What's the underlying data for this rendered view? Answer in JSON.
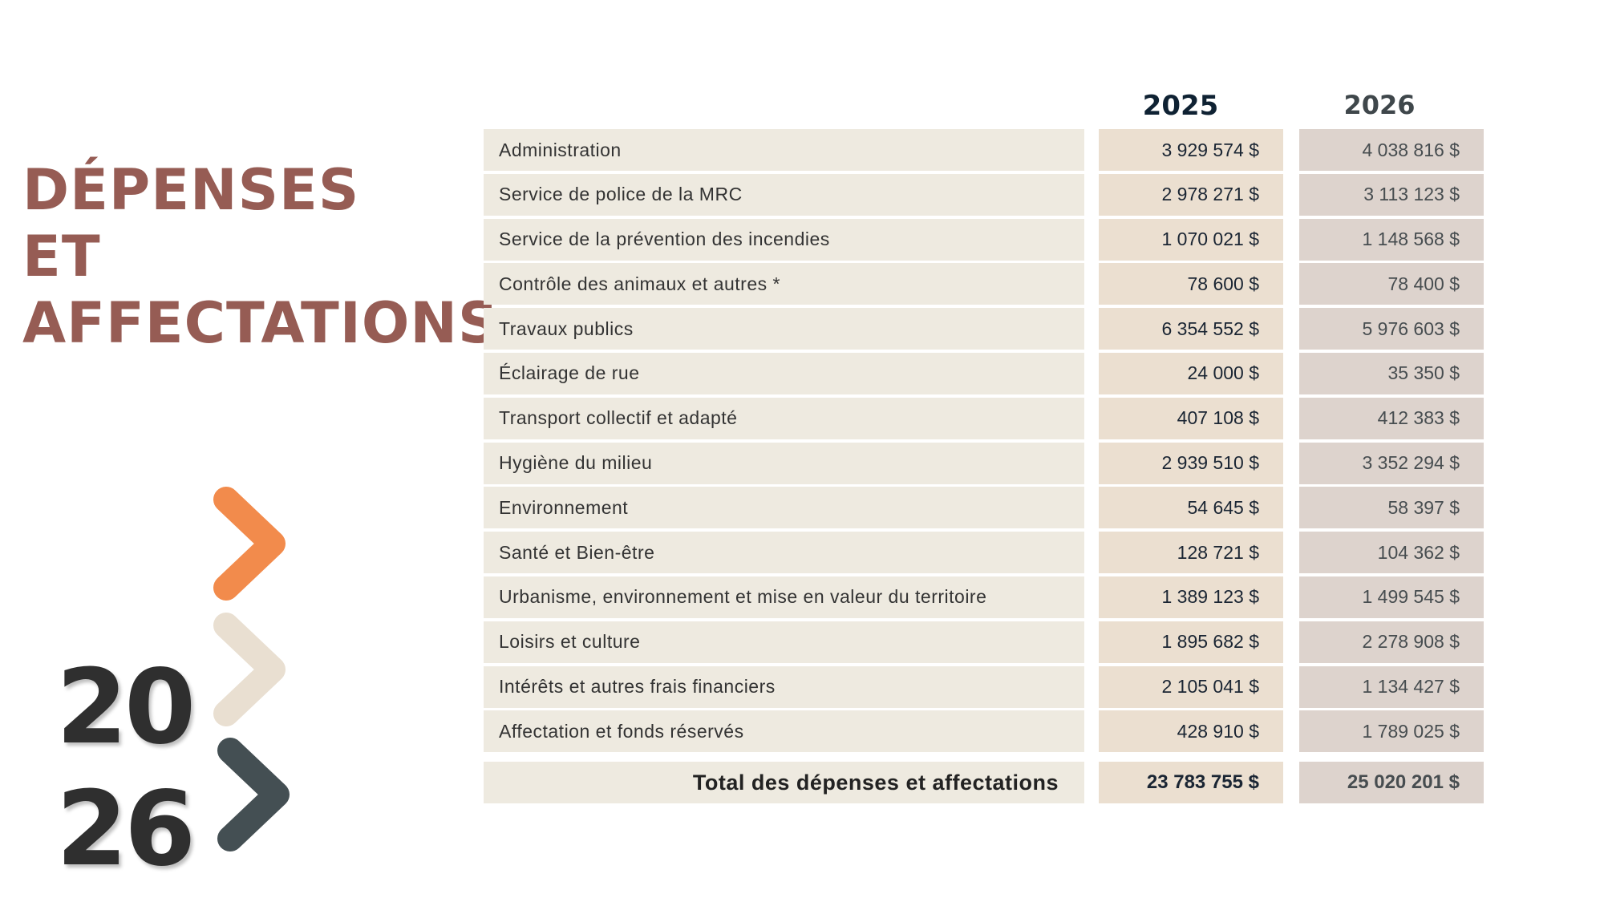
{
  "title": {
    "line1": "DÉPENSES",
    "line2": "ET",
    "line3": "AFFECTATIONS"
  },
  "year_badge": {
    "line1": "20",
    "line2": "26"
  },
  "colors": {
    "title": "#965c54",
    "chevron_1": "#f28b4c",
    "chevron_2": "#e9dfd1",
    "chevron_3": "#444f53",
    "col_2025": "#ebdfd0",
    "col_2026": "#ddd3cd",
    "label_bg": "#eeeae0"
  },
  "icons": [
    "chevron-right-orange-icon",
    "chevron-right-beige-icon",
    "chevron-right-dark-icon"
  ],
  "table": {
    "headers": {
      "y2025": "2025",
      "y2026": "2026"
    },
    "rows": [
      {
        "label": "Administration",
        "y2025": "3 929 574 $",
        "y2026": "4 038 816 $"
      },
      {
        "label": "Service de police de la MRC",
        "y2025": "2 978 271 $",
        "y2026": "3 113 123 $"
      },
      {
        "label": "Service de la prévention des incendies",
        "y2025": "1 070 021 $",
        "y2026": "1 148 568 $"
      },
      {
        "label": "Contrôle des animaux et autres *",
        "y2025": "78 600 $",
        "y2026": "78 400 $"
      },
      {
        "label": "Travaux publics",
        "y2025": "6 354 552 $",
        "y2026": "5 976 603 $"
      },
      {
        "label": "Éclairage de rue",
        "y2025": "24 000 $",
        "y2026": "35 350 $"
      },
      {
        "label": "Transport collectif et adapté",
        "y2025": "407 108 $",
        "y2026": "412 383 $"
      },
      {
        "label": "Hygiène du milieu",
        "y2025": "2 939 510 $",
        "y2026": "3 352 294 $"
      },
      {
        "label": "Environnement",
        "y2025": "54 645 $",
        "y2026": "58 397 $"
      },
      {
        "label": "Santé et Bien-être",
        "y2025": "128 721 $",
        "y2026": "104 362 $"
      },
      {
        "label": "Urbanisme, environnement et mise en valeur du territoire",
        "y2025": "1 389 123 $",
        "y2026": "1 499 545 $"
      },
      {
        "label": "Loisirs et culture",
        "y2025": "1 895 682 $",
        "y2026": "2 278 908 $"
      },
      {
        "label": "Intérêts et autres frais financiers",
        "y2025": "2 105 041 $",
        "y2026": "1 134 427 $"
      },
      {
        "label": "Affectation et fonds réservés",
        "y2025": "428 910 $",
        "y2026": "1 789 025 $"
      }
    ],
    "total": {
      "label": "Total des dépenses et affectations",
      "y2025": "23 783 755 $",
      "y2026": "25 020 201 $"
    }
  }
}
